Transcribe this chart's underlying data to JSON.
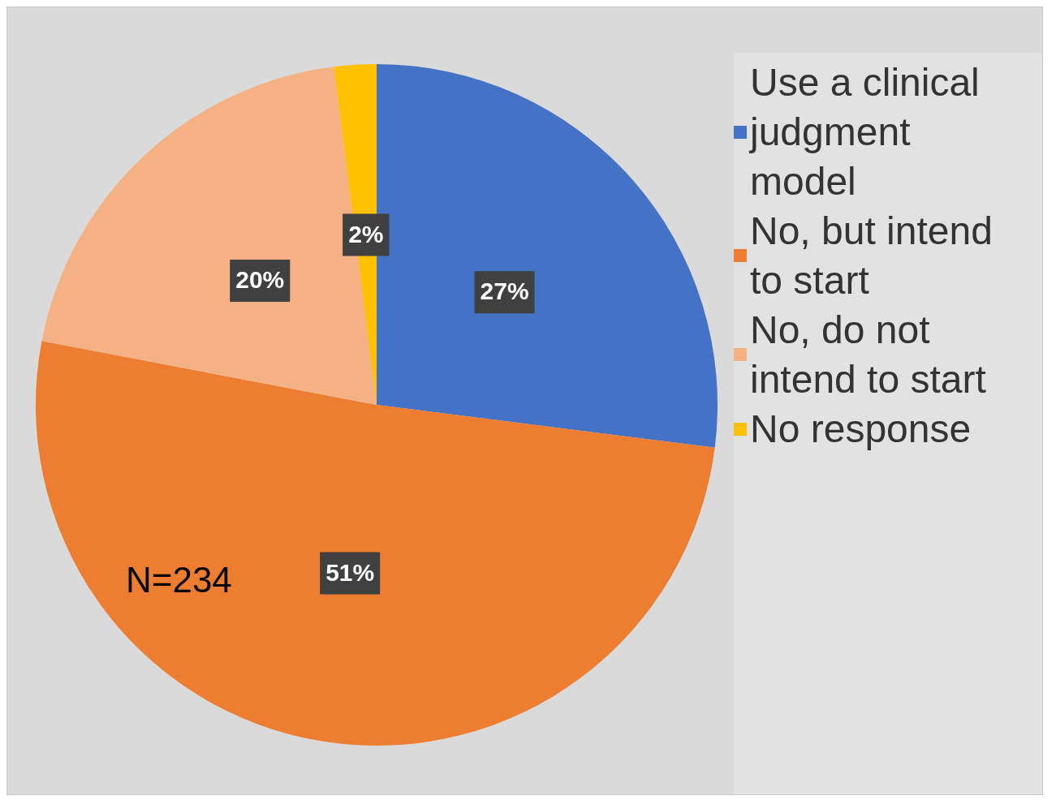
{
  "chart_data": {
    "type": "pie",
    "categories": [
      "Use a clinical judgment model",
      "No, but intend to start",
      "No, do not intend to start",
      "No response"
    ],
    "values": [
      27,
      51,
      20,
      2
    ],
    "colors": [
      "#4472c4",
      "#ed7d31",
      "#f4b183",
      "#ffc000"
    ],
    "value_labels": [
      "27%",
      "51%",
      "20%",
      "2%"
    ],
    "legend": "right",
    "annotations": [
      "N=234"
    ]
  }
}
